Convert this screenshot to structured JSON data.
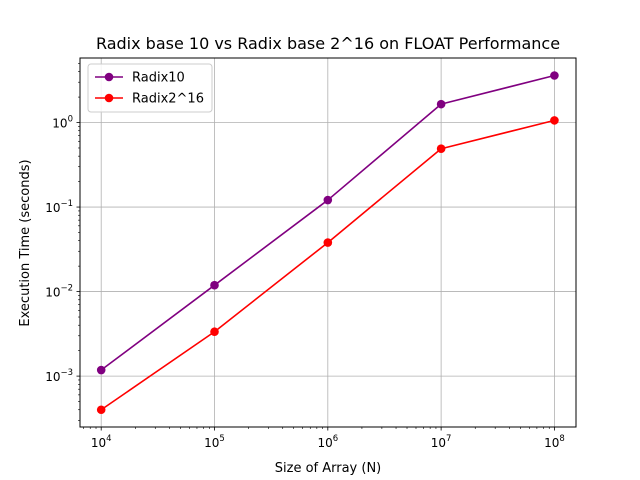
{
  "chart_data": {
    "type": "line",
    "title": "Radix base 10 vs Radix base 2^16 on FLOAT Performance",
    "xlabel": "Size of Array (N)",
    "ylabel": "Execution Time (seconds)",
    "xscale": "log",
    "yscale": "log",
    "xlim": [
      6500,
      155000000
    ],
    "ylim": [
      0.00025,
      5.8
    ],
    "x": [
      10000,
      100000,
      1000000,
      10000000,
      100000000
    ],
    "x_tick_values": [
      10000,
      100000,
      1000000,
      10000000,
      100000000
    ],
    "x_tick_labels": [
      {
        "base": "10",
        "exp": "4"
      },
      {
        "base": "10",
        "exp": "5"
      },
      {
        "base": "10",
        "exp": "6"
      },
      {
        "base": "10",
        "exp": "7"
      },
      {
        "base": "10",
        "exp": "8"
      }
    ],
    "y_tick_values": [
      0.001,
      0.01,
      0.1,
      1
    ],
    "y_tick_labels": [
      {
        "base": "10",
        "exp": "−3"
      },
      {
        "base": "10",
        "exp": "−2"
      },
      {
        "base": "10",
        "exp": "−1"
      },
      {
        "base": "10",
        "exp": "0"
      }
    ],
    "grid": true,
    "legend_position": "top-left",
    "series": [
      {
        "name": "Radix10",
        "color": "#800080",
        "values": [
          0.00118,
          0.0119,
          0.121,
          1.65,
          3.6
        ]
      },
      {
        "name": "Radix2^16",
        "color": "#ff0000",
        "values": [
          0.0004,
          0.00335,
          0.038,
          0.49,
          1.06
        ]
      }
    ]
  }
}
